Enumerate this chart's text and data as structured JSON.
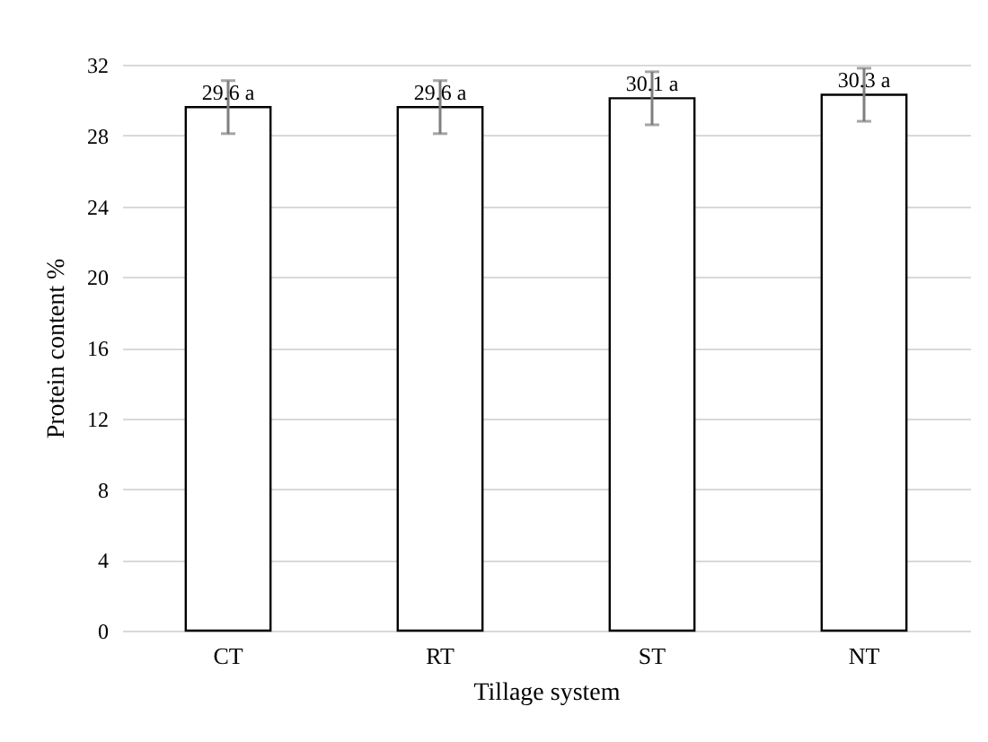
{
  "chart_data": {
    "type": "bar",
    "xlabel": "Tillage system",
    "ylabel": "Protein content %",
    "categories": [
      "CT",
      "RT",
      "ST",
      "NT"
    ],
    "values": [
      29.6,
      29.6,
      30.1,
      30.3
    ],
    "errors": [
      1.5,
      1.5,
      1.5,
      1.5
    ],
    "value_labels": [
      "29.6 a",
      "29.6 a",
      "30.1 a",
      "30.3 a"
    ],
    "color": "#ffffff",
    "ylim": [
      0,
      32
    ],
    "yticks": [
      0,
      4,
      8,
      12,
      16,
      20,
      24,
      28,
      32
    ],
    "grid": "y"
  }
}
